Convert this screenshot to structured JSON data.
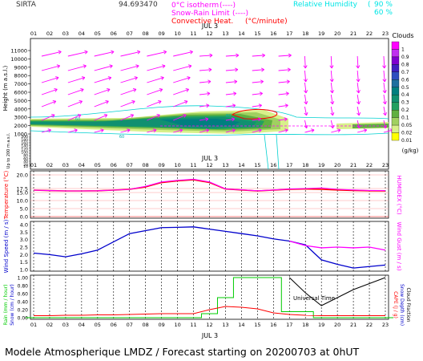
{
  "header": {
    "station": "SIRTA",
    "coords": "94.693470",
    "legend_left": [
      {
        "label": "0°C isotherm",
        "symbol": "(----)",
        "color": "#ff00ff"
      },
      {
        "label": "Snow-Rain Limit",
        "symbol": "(----)",
        "color": "#ff00ff"
      },
      {
        "label": "Convective Heat.",
        "symbol": "(°C/minute)",
        "color": "#ff0000"
      }
    ],
    "legend_right": [
      {
        "label": "Relative Humidity",
        "values": [
          "90 %",
          "60 %"
        ],
        "symbol": "(",
        "color": "#00e5e5"
      }
    ]
  },
  "footer_text": "Modele Atmospherique LMDZ / Forecast starting on 20200703 at 0hUT",
  "universal_time_label": "Universal Time",
  "date_label": "JUL  3",
  "hours": [
    "01",
    "02",
    "03",
    "04",
    "05",
    "06",
    "07",
    "08",
    "09",
    "10",
    "11",
    "12",
    "13",
    "14",
    "15",
    "16",
    "17",
    "18",
    "19",
    "20",
    "21",
    "22",
    "23"
  ],
  "chart_data": [
    {
      "type": "heatmap",
      "name": "upper-air",
      "ylabel": "Height  (m a.s.l.)",
      "yticks": [
        1000,
        2000,
        3000,
        4000,
        5000,
        6000,
        7000,
        8000,
        9000,
        10000,
        11000
      ],
      "ylabel_low": "Up to 200 m a.s.l.",
      "yticks_low": [
        10,
        20,
        30,
        40,
        50,
        60,
        70,
        80,
        90,
        100,
        110,
        120,
        130,
        140,
        150,
        160,
        170,
        180,
        190,
        200
      ],
      "colorbar": {
        "title": "Clouds",
        "unit": "(g/kg)",
        "levels": [
          "0.01",
          "0.02",
          "0.05",
          "0.1",
          "0.2",
          "0.3",
          "0.4",
          "0.5",
          "0.6",
          "0.7",
          "0.8",
          "0.9",
          "1"
        ],
        "colors": [
          "#ffff00",
          "#d8f08a",
          "#a0d060",
          "#60b040",
          "#20a060",
          "#109070",
          "#007f7f",
          "#1f6f9f",
          "#2f4fbf",
          "#4020c0",
          "#7f00cf",
          "#bf30ef",
          "#ff00ff"
        ]
      },
      "contour_labels": [
        "60",
        "60",
        "60"
      ]
    },
    {
      "type": "line",
      "name": "temperature-humidex",
      "ylabel": "Temperature (°C)",
      "ylabel_right": "HUMIDEX (°C)",
      "yticks": [
        "0.0",
        "5.0",
        "10.0",
        "15.0",
        "17.5",
        "20.0"
      ],
      "x": [
        "01",
        "02",
        "03",
        "04",
        "05",
        "06",
        "07",
        "08",
        "09",
        "10",
        "11",
        "12",
        "13",
        "14",
        "15",
        "16",
        "17",
        "18",
        "19",
        "20",
        "21",
        "22",
        "23"
      ],
      "series": [
        {
          "name": "Temperature",
          "color": "#ff0000",
          "values": [
            16.5,
            16.2,
            16.0,
            16.0,
            16.1,
            16.5,
            17.0,
            17.8,
            18.6,
            18.9,
            19.1,
            18.6,
            17.2,
            16.6,
            16.0,
            16.5,
            17.0,
            17.2,
            17.0,
            16.6,
            16.3,
            16.1,
            16.0
          ]
        },
        {
          "name": "HUMIDEX",
          "color": "#ff00ff",
          "values": [
            16.5,
            16.2,
            16.0,
            16.0,
            16.1,
            16.5,
            17.0,
            17.9,
            18.7,
            19.0,
            19.2,
            18.7,
            17.3,
            16.7,
            16.1,
            16.6,
            17.2,
            17.5,
            17.6,
            17.0,
            16.6,
            16.3,
            16.2
          ]
        }
      ]
    },
    {
      "type": "line",
      "name": "wind",
      "ylabel": "Wind Speed (m / s)",
      "ylabel_right": "Wind Gust (m / s)",
      "yticks": [
        "1.0",
        "1.5",
        "2.0",
        "2.5",
        "3.0",
        "3.5",
        "4.0"
      ],
      "x": [
        "01",
        "02",
        "03",
        "04",
        "05",
        "06",
        "07",
        "08",
        "09",
        "10",
        "11",
        "12",
        "13",
        "14",
        "15",
        "16",
        "17",
        "18",
        "19",
        "20",
        "21",
        "22",
        "23"
      ],
      "series": [
        {
          "name": "Wind Speed",
          "color": "#0000cc",
          "values": [
            2.1,
            2.0,
            1.85,
            2.05,
            2.3,
            2.85,
            3.4,
            3.6,
            3.8,
            3.82,
            3.85,
            3.7,
            3.55,
            3.4,
            3.25,
            3.05,
            2.9,
            2.65,
            1.65,
            1.35,
            1.1,
            1.2,
            1.3
          ]
        },
        {
          "name": "Wind Gust",
          "color": "#ff00ff",
          "values": [
            null,
            null,
            null,
            null,
            null,
            null,
            null,
            null,
            null,
            null,
            null,
            null,
            null,
            null,
            null,
            null,
            2.9,
            2.6,
            2.45,
            2.5,
            2.45,
            2.5,
            2.3
          ]
        }
      ]
    },
    {
      "type": "line",
      "name": "precip-cape",
      "ylabel_left_1": "Rain (mm / hour)",
      "ylabel_left_2": "Snow (cm / hour)",
      "ylabel_right_1": "CAPE (J / g)",
      "ylabel_right_2": "Snow Depth (cm)",
      "ylabel_right_3": "Cloud Fraction",
      "yticks": [
        "0.00",
        "0.20",
        "0.40",
        "0.60",
        "0.80",
        "1.00"
      ],
      "x": [
        "01",
        "02",
        "03",
        "04",
        "05",
        "06",
        "07",
        "08",
        "09",
        "10",
        "11",
        "12",
        "13",
        "14",
        "15",
        "16",
        "17",
        "18",
        "19",
        "20",
        "21",
        "22",
        "23"
      ],
      "series": [
        {
          "name": "Rain",
          "color": "#00cc00",
          "values": [
            0,
            0,
            0,
            0,
            0,
            0,
            0,
            0,
            0,
            0,
            0,
            0.1,
            0.5,
            1.0,
            1.0,
            1.0,
            0.15,
            0.15,
            0,
            0,
            0,
            0,
            0
          ]
        },
        {
          "name": "CAPE",
          "color": "#ff0000",
          "values": [
            0.05,
            0.05,
            0.06,
            0.06,
            0.07,
            0.07,
            0.08,
            0.09,
            0.1,
            0.1,
            0.1,
            0.2,
            0.28,
            0.26,
            0.22,
            0.12,
            0.08,
            0.06,
            0.05,
            0.05,
            0.05,
            0.05,
            0.05
          ]
        },
        {
          "name": "Cloud Fraction",
          "color": "#000000",
          "values": [
            null,
            null,
            null,
            null,
            null,
            null,
            null,
            null,
            null,
            null,
            null,
            null,
            null,
            null,
            null,
            null,
            1.0,
            0.62,
            0.3,
            0.5,
            0.7,
            0.85,
            1.0
          ]
        }
      ]
    }
  ]
}
